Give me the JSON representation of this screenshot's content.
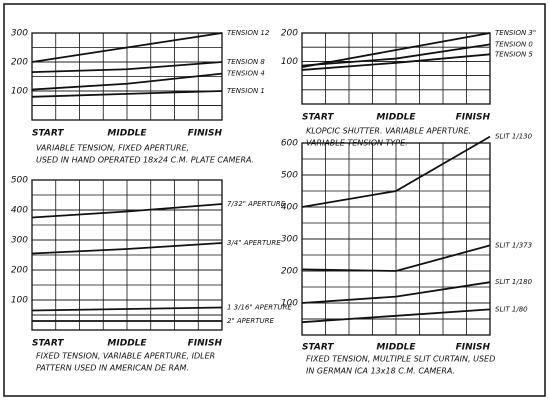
{
  "chart_data": [
    {
      "type": "line",
      "caption": [
        "VARIABLE TENSION, FIXED APERTURE,",
        "USED IN HAND OPERATED 18x24 C.M. PLATE CAMERA."
      ],
      "categories": [
        "START",
        "MIDDLE",
        "FINISH"
      ],
      "ylim": [
        0,
        300
      ],
      "yticks": [
        100,
        200,
        300
      ],
      "grid": true,
      "series": [
        {
          "name": "TENSION 12",
          "color": "#111",
          "values": [
            200,
            250,
            300
          ]
        },
        {
          "name": "TENSION 8",
          "color": "#111",
          "values": [
            165,
            175,
            200
          ]
        },
        {
          "name": "TENSION 4",
          "color": "#111",
          "values": [
            105,
            125,
            160
          ]
        },
        {
          "name": "TENSION 1",
          "color": "#111",
          "values": [
            80,
            90,
            100
          ]
        }
      ]
    },
    {
      "type": "line",
      "caption": [
        "KLOPCIC SHUTTER. VARIABLE APERTURE.",
        "VARIABLE TENSION TYPE."
      ],
      "categories": [
        "START",
        "MIDDLE",
        "FINISH"
      ],
      "ylim": [
        -50,
        200
      ],
      "yticks": [
        100,
        200
      ],
      "grid": true,
      "series": [
        {
          "name": "TENSION 3\"",
          "color": "#111",
          "values": [
            80,
            140,
            200
          ]
        },
        {
          "name": "TENSION 0",
          "color": "#111",
          "values": [
            85,
            110,
            160
          ]
        },
        {
          "name": "TENSION 5",
          "color": "#111",
          "values": [
            70,
            95,
            125
          ]
        }
      ]
    },
    {
      "type": "line",
      "caption": [
        "FIXED TENSION, VARIABLE APERTURE, IDLER",
        "PATTERN USED IN AMERICAN DE RAM."
      ],
      "categories": [
        "START",
        "MIDDLE",
        "FINISH"
      ],
      "ylim": [
        0,
        500
      ],
      "yticks": [
        100,
        200,
        300,
        400,
        500
      ],
      "grid": true,
      "series": [
        {
          "name": "7/32\" APERTURE",
          "color": "#111",
          "values": [
            375,
            395,
            420
          ]
        },
        {
          "name": "3/4\" APERTURE",
          "color": "#111",
          "values": [
            255,
            270,
            290
          ]
        },
        {
          "name": "1 3/16\" APERTURE",
          "color": "#111",
          "values": [
            65,
            70,
            75
          ]
        },
        {
          "name": "2\" APERTURE",
          "color": "#111",
          "values": [
            30,
            30,
            30
          ]
        }
      ]
    },
    {
      "type": "line",
      "caption": [
        "FIXED TENSION, MULTIPLE SLIT CURTAIN, USED",
        "IN GERMAN ICA 13x18 C.M. CAMERA."
      ],
      "categories": [
        "START",
        "MIDDLE",
        "FINISH"
      ],
      "ylim": [
        0,
        600
      ],
      "yticks": [
        100,
        200,
        300,
        400,
        500,
        600
      ],
      "grid": true,
      "series": [
        {
          "name": "SLIT 1/130",
          "color": "#111",
          "values": [
            400,
            450,
            620
          ]
        },
        {
          "name": "SLIT 1/373",
          "color": "#111",
          "values": [
            205,
            200,
            280
          ]
        },
        {
          "name": "SLIT 1/180",
          "color": "#111",
          "values": [
            100,
            120,
            165
          ]
        },
        {
          "name": "SLIT 1/80",
          "color": "#111",
          "values": [
            40,
            60,
            80
          ]
        }
      ]
    }
  ]
}
